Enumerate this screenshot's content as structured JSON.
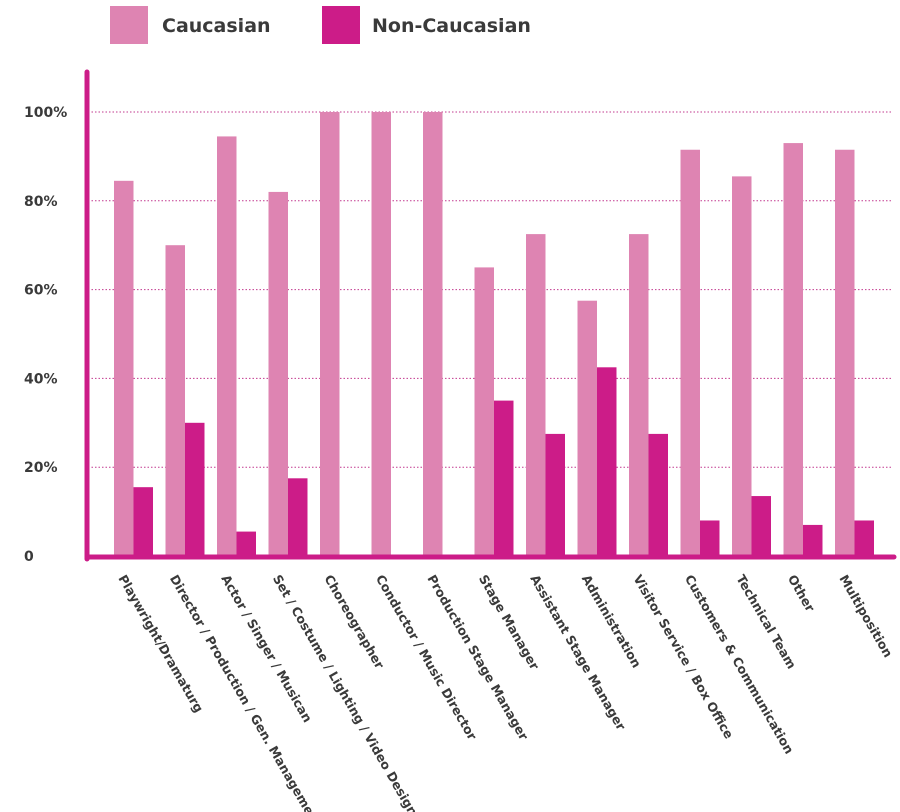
{
  "chart_data": {
    "type": "bar",
    "categories": [
      "Playwright/Dramaturg",
      "Director / Production / Gen. Management",
      "Actor / Singer / Musican",
      "Set / Costume / Lighting / Video Design",
      "Choreographer",
      "Conductor / Music Director",
      "Production Stage Manager",
      "Stage Manager",
      "Assistant Stage Manager",
      "Administration",
      "Visitor Service / Box Office",
      "Customers & Communication",
      "Technical Team",
      "Other",
      "Multiposition"
    ],
    "series": [
      {
        "name": "Caucasian",
        "color": "#de84b2",
        "values": [
          84.5,
          70,
          94.5,
          82,
          100,
          100,
          100,
          65,
          72.5,
          57.5,
          72.5,
          91.5,
          85.5,
          93,
          91.5
        ]
      },
      {
        "name": "Non-Caucasian",
        "color": "#cc1c88",
        "values": [
          15.5,
          30,
          5.5,
          17.5,
          0,
          0,
          0,
          35,
          27.5,
          42.5,
          27.5,
          8,
          13.5,
          7,
          8
        ]
      }
    ],
    "y_ticks": [
      {
        "value": 0,
        "label": "0"
      },
      {
        "value": 20,
        "label": "20%"
      },
      {
        "value": 40,
        "label": "40%"
      },
      {
        "value": 60,
        "label": "60%"
      },
      {
        "value": 80,
        "label": "80%"
      },
      {
        "value": 100,
        "label": "100%"
      }
    ],
    "ylim": [
      0,
      100
    ],
    "grid": true,
    "grid_style": "dotted",
    "axis_color": "#cc1c88",
    "grid_color": "#c2398f",
    "legend_position": "top-center"
  }
}
